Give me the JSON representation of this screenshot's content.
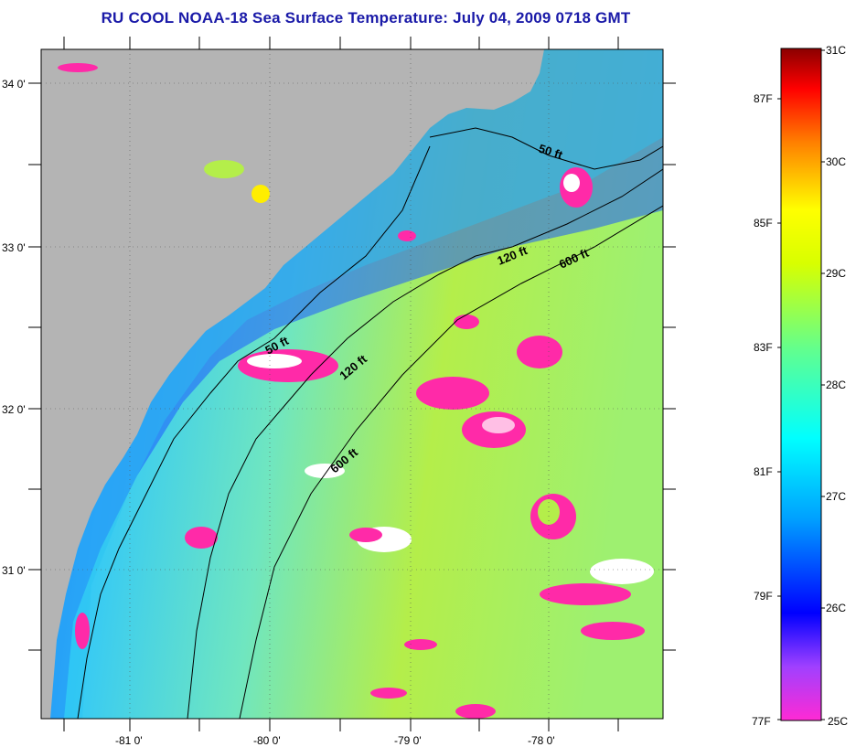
{
  "title": "RU COOL  NOAA-18  Sea Surface Temperature:  July 04, 2009 0718 GMT",
  "map": {
    "lat_labels": [
      "34 0'",
      "33 0'",
      "32 0'",
      "31 0'"
    ],
    "lon_labels": [
      "-81 0'",
      "-80 0'",
      "-79 0'",
      "-78 0'"
    ],
    "isobath_labels": [
      "50 ft",
      "120 ft",
      "600 ft",
      "50 ft",
      "120 ft",
      "600 ft"
    ],
    "colors": {
      "land": "#b4b4b4",
      "ocean_warm": "#b4ee4a",
      "ocean_mid": "#33d8f0",
      "ocean_cool": "#1e5aff",
      "cloud": "#ff2aa8",
      "nodata": "#ffffff"
    }
  },
  "colorbar": {
    "celsius_labels": [
      "31C",
      "30C",
      "29C",
      "28C",
      "27C",
      "26C",
      "25C"
    ],
    "fahrenheit_labels": [
      "87F",
      "85F",
      "83F",
      "81F",
      "79F",
      "77F"
    ],
    "range_c": [
      25,
      31
    ]
  }
}
